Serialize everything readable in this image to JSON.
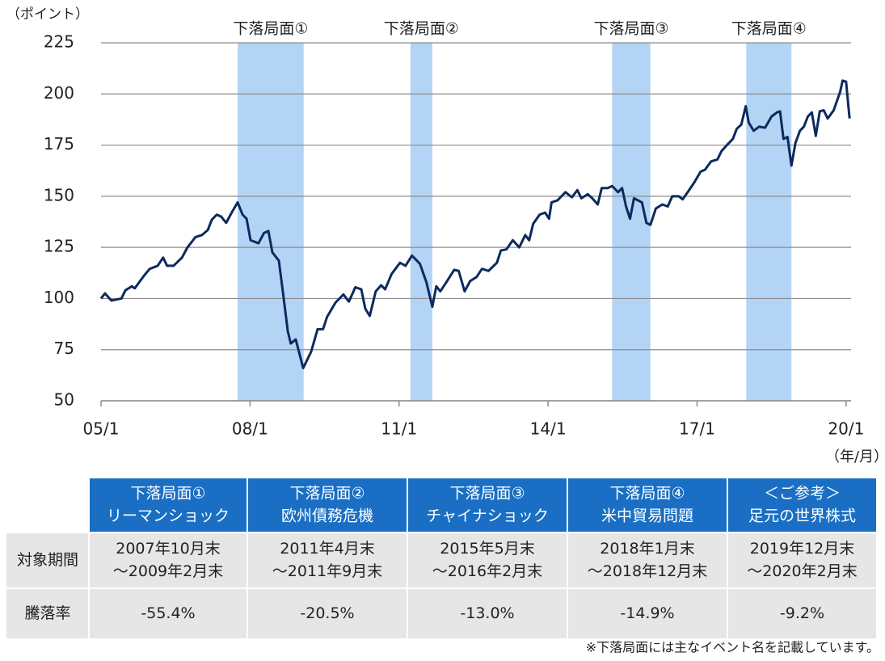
{
  "chart_data": {
    "type": "line",
    "y_label": "（ポイント）",
    "x_label": "（年/月）",
    "color": "#0d2a5e",
    "shade_color": "#b3d4f5",
    "grid": true,
    "xlim": [
      2005,
      2020.1
    ],
    "xticks": [
      {
        "value": 2005,
        "label": "05/1"
      },
      {
        "value": 2008,
        "label": "08/1"
      },
      {
        "value": 2011,
        "label": "11/1"
      },
      {
        "value": 2014,
        "label": "14/1"
      },
      {
        "value": 2017,
        "label": "17/1"
      },
      {
        "value": 2020,
        "label": "20/1"
      }
    ],
    "ylim": [
      50,
      225
    ],
    "yticks": [
      50,
      75,
      100,
      125,
      150,
      175,
      200,
      225
    ],
    "shaded_periods": [
      {
        "label": "下落局面①",
        "start": 2007.75,
        "end": 2009.08
      },
      {
        "label": "下落局面②",
        "start": 2011.23,
        "end": 2011.67
      },
      {
        "label": "下落局面③",
        "start": 2015.29,
        "end": 2016.06
      },
      {
        "label": "下落局面④",
        "start": 2017.99,
        "end": 2018.9
      }
    ],
    "x": [
      2005.0,
      2005.08,
      2005.21,
      2005.41,
      2005.49,
      2005.62,
      2005.68,
      2005.86,
      2005.98,
      2006.14,
      2006.25,
      2006.33,
      2006.46,
      2006.63,
      2006.74,
      2006.9,
      2007.03,
      2007.15,
      2007.23,
      2007.33,
      2007.42,
      2007.52,
      2007.63,
      2007.75,
      2007.85,
      2007.93,
      2008.01,
      2008.17,
      2008.28,
      2008.37,
      2008.45,
      2008.58,
      2008.66,
      2008.76,
      2008.82,
      2008.92,
      2009.07,
      2009.23,
      2009.36,
      2009.47,
      2009.55,
      2009.72,
      2009.88,
      2009.99,
      2010.12,
      2010.24,
      2010.32,
      2010.41,
      2010.53,
      2010.64,
      2010.72,
      2010.85,
      2011.02,
      2011.13,
      2011.26,
      2011.42,
      2011.55,
      2011.67,
      2011.75,
      2011.83,
      2011.94,
      2012.11,
      2012.2,
      2012.32,
      2012.43,
      2012.56,
      2012.67,
      2012.8,
      2012.97,
      2013.05,
      2013.16,
      2013.29,
      2013.42,
      2013.54,
      2013.62,
      2013.7,
      2013.83,
      2013.94,
      2014.02,
      2014.07,
      2014.19,
      2014.35,
      2014.48,
      2014.59,
      2014.67,
      2014.8,
      2014.89,
      2015.0,
      2015.08,
      2015.2,
      2015.29,
      2015.41,
      2015.49,
      2015.57,
      2015.65,
      2015.73,
      2015.89,
      2015.98,
      2016.06,
      2016.17,
      2016.3,
      2016.41,
      2016.5,
      2016.63,
      2016.71,
      2016.84,
      2016.95,
      2017.07,
      2017.16,
      2017.28,
      2017.41,
      2017.49,
      2017.6,
      2017.72,
      2017.8,
      2017.89,
      2017.98,
      2018.04,
      2018.14,
      2018.25,
      2018.37,
      2018.5,
      2018.61,
      2018.67,
      2018.74,
      2018.82,
      2018.9,
      2018.98,
      2019.07,
      2019.15,
      2019.23,
      2019.31,
      2019.39,
      2019.47,
      2019.55,
      2019.63,
      2019.75,
      2019.88,
      2019.93,
      2020.0,
      2020.07
    ],
    "values": [
      100,
      102.5,
      99,
      100,
      104,
      106,
      105,
      111,
      114.5,
      116,
      120,
      116,
      116,
      120,
      125,
      130,
      131,
      133.5,
      138.5,
      141,
      140,
      137,
      142,
      147,
      141,
      139,
      128.5,
      127,
      132,
      133,
      122.5,
      118.5,
      103.5,
      84,
      78,
      80,
      66,
      74,
      85,
      85,
      91,
      98,
      102,
      98.5,
      105.5,
      104.5,
      95,
      91.5,
      103.5,
      106.5,
      104.5,
      112,
      117.5,
      116,
      121,
      117,
      108,
      96,
      106,
      103.5,
      107.5,
      114,
      113.5,
      103.5,
      108.5,
      110.5,
      114.5,
      113.5,
      117.5,
      123.5,
      124,
      128.5,
      125,
      131,
      128.5,
      136.5,
      141,
      142,
      139,
      147,
      148,
      152,
      149.5,
      153,
      149,
      151,
      149,
      146,
      154,
      154,
      155,
      152,
      154,
      145,
      139,
      149,
      147,
      137,
      136,
      144,
      146,
      145,
      150,
      150,
      148.5,
      153,
      157,
      162,
      163,
      167,
      168,
      172,
      175,
      178,
      183,
      185,
      194,
      186,
      182,
      184,
      183.5,
      189,
      191,
      191.5,
      178,
      179,
      165,
      176,
      182,
      184,
      189,
      191,
      179.5,
      191.5,
      192,
      188,
      192,
      201,
      206.5,
      206,
      188
    ]
  },
  "table": {
    "header": [
      [
        "下落局面①",
        "リーマンショック"
      ],
      [
        "下落局面②",
        "欧州債務危機"
      ],
      [
        "下落局面③",
        "チャイナショック"
      ],
      [
        "下落局面④",
        "米中貿易問題"
      ],
      [
        "＜ご参考＞",
        "足元の世界株式"
      ]
    ],
    "rows": [
      {
        "label": "対象期間",
        "cells": [
          [
            "2007年10月末",
            "～2009年2月末"
          ],
          [
            "2011年4月末",
            "～2011年9月末"
          ],
          [
            "2015年5月末",
            "～2016年2月末"
          ],
          [
            "2018年1月末",
            "～2018年12月末"
          ],
          [
            "2019年12月末",
            "～2020年2月末"
          ]
        ]
      },
      {
        "label": "騰落率",
        "cells": [
          [
            "-55.4%"
          ],
          [
            "-20.5%"
          ],
          [
            "-13.0%"
          ],
          [
            "-14.9%"
          ],
          [
            "-9.2%"
          ]
        ]
      }
    ],
    "note": "※下落局面には主なイベント名を記載しています。"
  }
}
